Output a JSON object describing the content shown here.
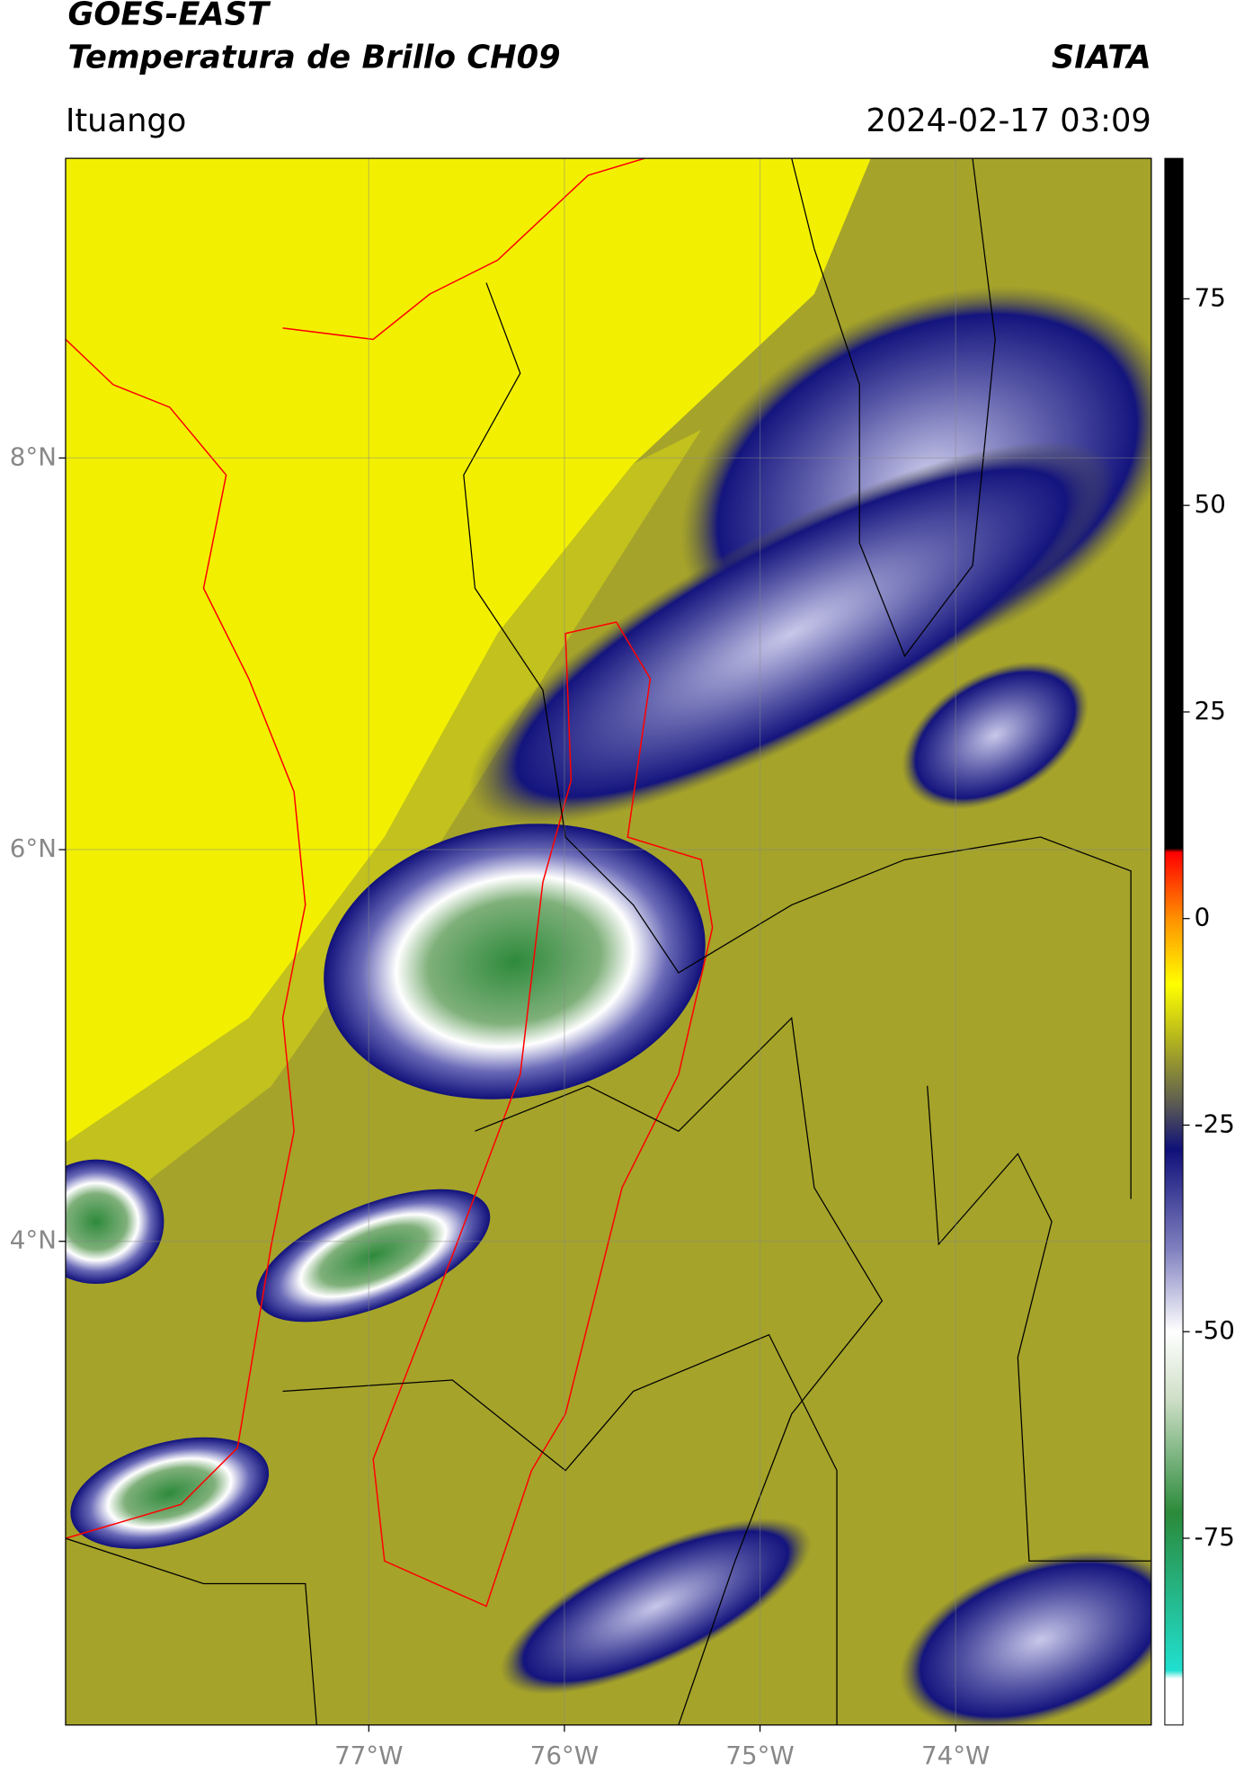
{
  "header": {
    "title": "GOES-EAST",
    "subtitle": "Temperatura de Brillo CH09",
    "organization": "SIATA",
    "location": "Ituango",
    "datetime": "2024-02-17 03:09"
  },
  "map": {
    "lonlim": [
      -78.55,
      -73.0
    ],
    "latlim": [
      1.53,
      9.53
    ],
    "grid": true,
    "xticks": [
      {
        "value": -77,
        "label": "77°W"
      },
      {
        "value": -76,
        "label": "76°W"
      },
      {
        "value": -75,
        "label": "75°W"
      },
      {
        "value": -74,
        "label": "74°W"
      }
    ],
    "yticks": [
      {
        "value": 8,
        "label": "8°N"
      },
      {
        "value": 6,
        "label": "6°N"
      },
      {
        "value": 4,
        "label": "4°N"
      }
    ]
  },
  "colorbar": {
    "lim": [
      -97.6,
      92
    ],
    "ticks": [
      75,
      50,
      25,
      0,
      -25,
      -50,
      -75
    ],
    "colors": [
      {
        "value": -97.6,
        "color": "#ffffff"
      },
      {
        "value": -92,
        "color": "#ffffff"
      },
      {
        "value": -91,
        "color": "#20e0d0"
      },
      {
        "value": -72,
        "color": "#2a8a3a"
      },
      {
        "value": -58,
        "color": "#d0e0c8"
      },
      {
        "value": -50,
        "color": "#ffffff"
      },
      {
        "value": -40,
        "color": "#8080c0"
      },
      {
        "value": -28,
        "color": "#10107a"
      },
      {
        "value": -22,
        "color": "#606050"
      },
      {
        "value": -15,
        "color": "#b0b020"
      },
      {
        "value": -8,
        "color": "#ffff00"
      },
      {
        "value": 0,
        "color": "#ff9000"
      },
      {
        "value": 8,
        "color": "#ff0000"
      },
      {
        "value": 8.5,
        "color": "#000000"
      },
      {
        "value": 92,
        "color": "#000000"
      }
    ]
  }
}
